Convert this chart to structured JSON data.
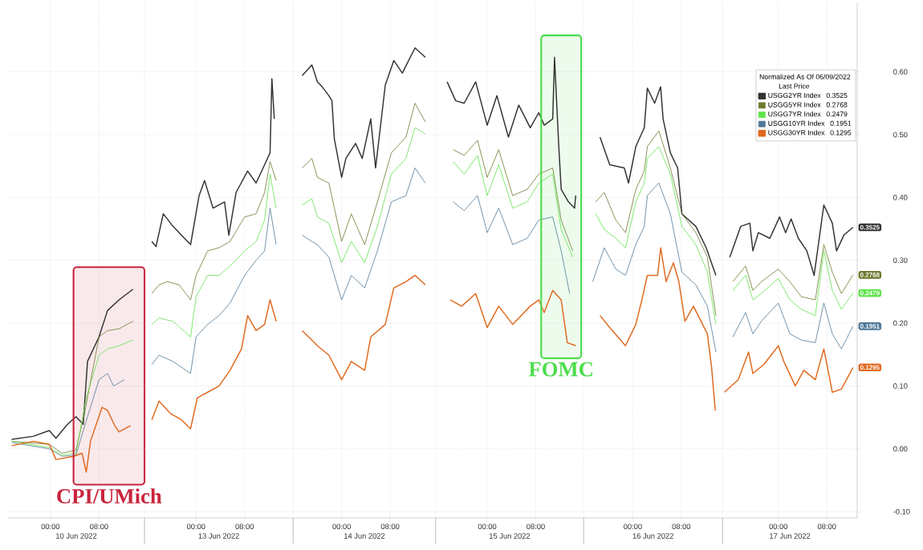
{
  "chart_data": [
    {
      "type": "line",
      "xlabel": "10 Jun 2022",
      "xlim": [
        "2022-06-09T17:00",
        "2022-06-10T15:30"
      ],
      "ylim": [
        -0.11,
        0.71
      ],
      "xticks": [
        {
          "value": "2022-06-10T00:00",
          "label": "00:00"
        },
        {
          "value": "2022-06-10T08:00",
          "label": "08:00"
        }
      ],
      "yticks": [
        -0.1,
        0.0,
        0.1,
        0.2,
        0.3,
        0.4,
        0.5,
        0.6
      ],
      "grid": true,
      "tick_labels": "x",
      "bands": [
        {
          "axis": "x",
          "from": "2022-06-10T03:48",
          "to": "2022-06-10T15:30",
          "label": "CPI/UMich",
          "color": "#c8243c"
        }
      ],
      "series": [
        {
          "color": "#333333",
          "x": [
            "2022-06-09T17:36",
            "2022-06-09T21:12",
            "2022-06-09T23:48",
            "2022-06-10T00:54",
            "2022-06-10T02:48",
            "2022-06-10T04:12",
            "2022-06-10T05:24",
            "2022-06-10T06:06",
            "2022-06-10T08:00",
            "2022-06-10T09:24",
            "2022-06-10T11:18",
            "2022-06-10T13:36"
          ],
          "values": [
            0.015,
            0.02,
            0.029,
            0.017,
            0.039,
            0.051,
            0.039,
            0.139,
            0.178,
            0.22,
            0.237,
            0.254
          ]
        },
        {
          "color": "#6b7a2e",
          "x": [
            "2022-06-09T17:36",
            "2022-06-09T23:48",
            "2022-06-10T01:54",
            "2022-06-10T04:12",
            "2022-06-10T05:36",
            "2022-06-10T08:00",
            "2022-06-10T09:24",
            "2022-06-10T11:18",
            "2022-06-10T13:36"
          ],
          "values": [
            0.012,
            0.007,
            -0.007,
            -0.002,
            0.056,
            0.178,
            0.188,
            0.191,
            0.203
          ]
        },
        {
          "color": "#5ee34a",
          "x": [
            "2022-06-09T17:36",
            "2022-06-09T23:48",
            "2022-06-10T01:54",
            "2022-06-10T04:12",
            "2022-06-10T05:54",
            "2022-06-10T08:00",
            "2022-06-10T09:24",
            "2022-06-10T11:18",
            "2022-06-10T13:36"
          ],
          "values": [
            0.012,
            0.002,
            -0.01,
            -0.007,
            0.081,
            0.149,
            0.159,
            0.164,
            0.173
          ]
        },
        {
          "color": "#4f7898",
          "x": [
            "2022-06-09T17:36",
            "2022-06-09T23:48",
            "2022-06-10T01:54",
            "2022-06-10T04:12",
            "2022-06-10T06:06",
            "2022-06-10T08:00",
            "2022-06-10T09:24",
            "2022-06-10T10:24",
            "2022-06-10T12:12"
          ],
          "values": [
            0.01,
            0.0,
            -0.012,
            -0.01,
            0.051,
            0.11,
            0.12,
            0.1,
            0.11
          ]
        },
        {
          "color": "#e0691f",
          "x": [
            "2022-06-09T17:36",
            "2022-06-09T21:12",
            "2022-06-09T23:48",
            "2022-06-10T00:54",
            "2022-06-10T03:48",
            "2022-06-10T05:12",
            "2022-06-10T05:54",
            "2022-06-10T06:36",
            "2022-06-10T08:30",
            "2022-06-10T09:24",
            "2022-06-10T10:36",
            "2022-06-10T11:18",
            "2022-06-10T13:12"
          ],
          "values": [
            0.005,
            0.012,
            0.007,
            -0.017,
            -0.012,
            -0.007,
            -0.037,
            0.012,
            0.066,
            0.061,
            0.037,
            0.027,
            0.037
          ]
        }
      ]
    },
    {
      "type": "line",
      "xlabel": "13 Jun 2022",
      "xlim": [
        "2022-06-12T15:30",
        "2022-06-13T16:00"
      ],
      "ylim": [
        -0.11,
        0.71
      ],
      "xticks": [
        {
          "value": "2022-06-13T00:00",
          "label": "00:00"
        },
        {
          "value": "2022-06-13T08:00",
          "label": "08:00"
        }
      ],
      "yticks": [
        -0.1,
        0.0,
        0.1,
        0.2,
        0.3,
        0.4,
        0.5,
        0.6
      ],
      "grid": true,
      "tick_labels": "x",
      "series": [
        {
          "color": "#333333",
          "x": [
            "2022-06-12T16:42",
            "2022-06-12T17:24",
            "2022-06-12T18:36",
            "2022-06-12T20:12",
            "2022-06-12T22:06",
            "2022-06-12T23:06",
            "2022-06-13T00:30",
            "2022-06-13T01:24",
            "2022-06-13T02:48",
            "2022-06-13T04:42",
            "2022-06-13T05:24",
            "2022-06-13T06:36",
            "2022-06-13T08:30",
            "2022-06-13T09:54",
            "2022-06-13T11:18",
            "2022-06-13T12:12",
            "2022-06-13T12:30",
            "2022-06-13T12:54"
          ],
          "values": [
            0.33,
            0.322,
            0.374,
            0.354,
            0.335,
            0.325,
            0.403,
            0.427,
            0.383,
            0.393,
            0.34,
            0.408,
            0.442,
            0.423,
            0.452,
            0.471,
            0.589,
            0.525
          ]
        },
        {
          "color": "#6b7a2e",
          "x": [
            "2022-06-12T16:42",
            "2022-06-12T17:54",
            "2022-06-12T19:18",
            "2022-06-12T21:12",
            "2022-06-12T23:06",
            "2022-06-13T00:00",
            "2022-06-13T01:54",
            "2022-06-13T03:48",
            "2022-06-13T05:36",
            "2022-06-13T08:00",
            "2022-06-13T09:54",
            "2022-06-13T11:18",
            "2022-06-13T12:12",
            "2022-06-13T13:12"
          ],
          "values": [
            0.247,
            0.261,
            0.266,
            0.261,
            0.237,
            0.276,
            0.315,
            0.32,
            0.33,
            0.369,
            0.374,
            0.408,
            0.457,
            0.427
          ]
        },
        {
          "color": "#5ee34a",
          "x": [
            "2022-06-12T16:42",
            "2022-06-12T17:54",
            "2022-06-12T20:12",
            "2022-06-12T23:06",
            "2022-06-13T00:00",
            "2022-06-13T01:54",
            "2022-06-13T03:48",
            "2022-06-13T05:36",
            "2022-06-13T08:00",
            "2022-06-13T09:54",
            "2022-06-13T11:18",
            "2022-06-13T12:12",
            "2022-06-13T13:12"
          ],
          "values": [
            0.198,
            0.208,
            0.203,
            0.178,
            0.242,
            0.276,
            0.276,
            0.291,
            0.315,
            0.33,
            0.364,
            0.437,
            0.383
          ]
        },
        {
          "color": "#4f7898",
          "x": [
            "2022-06-12T16:42",
            "2022-06-12T17:54",
            "2022-06-12T20:12",
            "2022-06-12T23:06",
            "2022-06-13T00:00",
            "2022-06-13T01:54",
            "2022-06-13T03:48",
            "2022-06-13T05:36",
            "2022-06-13T08:00",
            "2022-06-13T09:54",
            "2022-06-13T11:18",
            "2022-06-13T12:12",
            "2022-06-13T13:12"
          ],
          "values": [
            0.134,
            0.149,
            0.139,
            0.12,
            0.178,
            0.198,
            0.212,
            0.232,
            0.276,
            0.3,
            0.315,
            0.383,
            0.325
          ]
        },
        {
          "color": "#e0691f",
          "x": [
            "2022-06-12T16:42",
            "2022-06-12T17:54",
            "2022-06-12T19:48",
            "2022-06-12T21:36",
            "2022-06-12T23:06",
            "2022-06-13T00:12",
            "2022-06-13T01:54",
            "2022-06-13T03:48",
            "2022-06-13T05:36",
            "2022-06-13T07:30",
            "2022-06-13T08:30",
            "2022-06-13T09:54",
            "2022-06-13T11:18",
            "2022-06-13T12:12",
            "2022-06-13T13:12"
          ],
          "values": [
            0.046,
            0.076,
            0.056,
            0.046,
            0.032,
            0.081,
            0.09,
            0.1,
            0.125,
            0.159,
            0.212,
            0.188,
            0.198,
            0.237,
            0.203
          ]
        }
      ]
    },
    {
      "type": "line",
      "xlabel": "14 Jun 2022",
      "xlim": [
        "2022-06-13T16:00",
        "2022-06-14T15:30"
      ],
      "ylim": [
        -0.11,
        0.71
      ],
      "xticks": [
        {
          "value": "2022-06-14T00:00",
          "label": "00:00"
        },
        {
          "value": "2022-06-14T08:00",
          "label": "08:00"
        }
      ],
      "yticks": [
        -0.1,
        0.0,
        0.1,
        0.2,
        0.3,
        0.4,
        0.5,
        0.6
      ],
      "grid": true,
      "tick_labels": "x",
      "series": [
        {
          "color": "#333333",
          "x": [
            "2022-06-13T17:30",
            "2022-06-13T19:06",
            "2022-06-13T20:00",
            "2022-06-13T20:48",
            "2022-06-13T21:54",
            "2022-06-13T22:24",
            "2022-06-13T22:48",
            "2022-06-14T00:00",
            "2022-06-14T00:42",
            "2022-06-14T02:18",
            "2022-06-14T03:24",
            "2022-06-14T04:48",
            "2022-06-14T05:36",
            "2022-06-14T07:12",
            "2022-06-14T08:36",
            "2022-06-14T10:00",
            "2022-06-14T12:06",
            "2022-06-14T13:48"
          ],
          "values": [
            0.594,
            0.611,
            0.584,
            0.576,
            0.562,
            0.554,
            0.493,
            0.432,
            0.462,
            0.486,
            0.462,
            0.525,
            0.447,
            0.579,
            0.618,
            0.598,
            0.638,
            0.623
          ]
        },
        {
          "color": "#6b7a2e",
          "x": [
            "2022-06-13T17:30",
            "2022-06-13T19:06",
            "2022-06-13T20:00",
            "2022-06-13T21:54",
            "2022-06-14T00:00",
            "2022-06-14T01:36",
            "2022-06-14T03:48",
            "2022-06-14T05:54",
            "2022-06-14T08:12",
            "2022-06-14T10:36",
            "2022-06-14T12:06",
            "2022-06-14T13:48"
          ],
          "values": [
            0.447,
            0.462,
            0.432,
            0.423,
            0.33,
            0.374,
            0.325,
            0.393,
            0.471,
            0.496,
            0.55,
            0.52
          ]
        },
        {
          "color": "#5ee34a",
          "x": [
            "2022-06-13T17:30",
            "2022-06-13T19:06",
            "2022-06-13T20:00",
            "2022-06-13T21:54",
            "2022-06-14T00:00",
            "2022-06-14T01:36",
            "2022-06-14T03:48",
            "2022-06-14T05:54",
            "2022-06-14T08:12",
            "2022-06-14T10:36",
            "2022-06-14T12:06",
            "2022-06-14T13:48"
          ],
          "values": [
            0.388,
            0.398,
            0.369,
            0.359,
            0.296,
            0.33,
            0.296,
            0.354,
            0.437,
            0.462,
            0.511,
            0.501
          ]
        },
        {
          "color": "#4f7898",
          "x": [
            "2022-06-13T17:30",
            "2022-06-13T19:06",
            "2022-06-13T20:00",
            "2022-06-13T21:54",
            "2022-06-14T00:00",
            "2022-06-14T01:36",
            "2022-06-14T03:48",
            "2022-06-14T05:54",
            "2022-06-14T08:12",
            "2022-06-14T10:36",
            "2022-06-14T12:06",
            "2022-06-14T13:48"
          ],
          "values": [
            0.34,
            0.33,
            0.325,
            0.305,
            0.237,
            0.276,
            0.256,
            0.315,
            0.393,
            0.403,
            0.447,
            0.423
          ]
        },
        {
          "color": "#e0691f",
          "x": [
            "2022-06-13T17:30",
            "2022-06-13T19:06",
            "2022-06-13T20:00",
            "2022-06-13T21:54",
            "2022-06-14T00:00",
            "2022-06-14T01:36",
            "2022-06-14T03:48",
            "2022-06-14T04:48",
            "2022-06-14T07:12",
            "2022-06-14T08:36",
            "2022-06-14T10:36",
            "2022-06-14T12:06",
            "2022-06-14T13:48"
          ],
          "values": [
            0.188,
            0.173,
            0.164,
            0.149,
            0.11,
            0.139,
            0.125,
            0.178,
            0.198,
            0.256,
            0.266,
            0.276,
            0.261
          ]
        }
      ]
    },
    {
      "type": "line",
      "xlabel": "15 Jun 2022",
      "xlim": [
        "2022-06-14T15:30",
        "2022-06-15T15:54"
      ],
      "ylim": [
        -0.11,
        0.71
      ],
      "xticks": [
        {
          "value": "2022-06-15T00:00",
          "label": "00:00"
        },
        {
          "value": "2022-06-15T08:00",
          "label": "08:00"
        }
      ],
      "yticks": [
        -0.1,
        0.0,
        0.1,
        0.2,
        0.3,
        0.4,
        0.5,
        0.6
      ],
      "grid": true,
      "tick_labels": "x",
      "bands": [
        {
          "axis": "x",
          "from": "2022-06-15T08:54",
          "to": "2022-06-15T15:30",
          "label": "FOMC",
          "color": "#4ddc4d"
        }
      ],
      "series": [
        {
          "color": "#333333",
          "x": [
            "2022-06-14T17:24",
            "2022-06-14T18:48",
            "2022-06-14T20:12",
            "2022-06-14T22:06",
            "2022-06-15T00:00",
            "2022-06-15T01:36",
            "2022-06-15T03:30",
            "2022-06-15T05:12",
            "2022-06-15T07:06",
            "2022-06-15T08:30",
            "2022-06-15T09:24",
            "2022-06-15T10:48",
            "2022-06-15T11:06",
            "2022-06-15T11:48",
            "2022-06-15T12:12",
            "2022-06-15T13:24",
            "2022-06-15T14:24",
            "2022-06-15T14:36"
          ],
          "values": [
            0.584,
            0.554,
            0.55,
            0.584,
            0.515,
            0.562,
            0.496,
            0.547,
            0.511,
            0.535,
            0.515,
            0.525,
            0.623,
            0.481,
            0.413,
            0.393,
            0.383,
            0.403
          ]
        },
        {
          "color": "#6b7a2e",
          "x": [
            "2022-06-14T18:24",
            "2022-06-14T20:12",
            "2022-06-14T22:24",
            "2022-06-15T00:00",
            "2022-06-15T01:54",
            "2022-06-15T04:12",
            "2022-06-15T06:36",
            "2022-06-15T08:30",
            "2022-06-15T10:48",
            "2022-06-15T12:12",
            "2022-06-15T14:06"
          ],
          "values": [
            0.476,
            0.467,
            0.491,
            0.432,
            0.476,
            0.403,
            0.413,
            0.437,
            0.447,
            0.364,
            0.315
          ]
        },
        {
          "color": "#5ee34a",
          "x": [
            "2022-06-14T18:24",
            "2022-06-14T20:12",
            "2022-06-14T22:24",
            "2022-06-15T00:00",
            "2022-06-15T01:54",
            "2022-06-15T04:12",
            "2022-06-15T06:36",
            "2022-06-15T08:30",
            "2022-06-15T10:48",
            "2022-06-15T12:12",
            "2022-06-15T14:06"
          ],
          "values": [
            0.457,
            0.437,
            0.467,
            0.403,
            0.452,
            0.383,
            0.393,
            0.423,
            0.437,
            0.349,
            0.305
          ]
        },
        {
          "color": "#4f7898",
          "x": [
            "2022-06-14T18:24",
            "2022-06-14T20:12",
            "2022-06-14T22:24",
            "2022-06-15T00:00",
            "2022-06-15T01:54",
            "2022-06-15T04:12",
            "2022-06-15T06:36",
            "2022-06-15T08:30",
            "2022-06-15T10:48",
            "2022-06-15T12:12",
            "2022-06-15T13:36"
          ],
          "values": [
            0.393,
            0.379,
            0.403,
            0.344,
            0.383,
            0.325,
            0.335,
            0.364,
            0.369,
            0.315,
            0.247
          ]
        },
        {
          "color": "#e0691f",
          "x": [
            "2022-06-14T17:54",
            "2022-06-14T19:48",
            "2022-06-14T22:06",
            "2022-06-15T00:00",
            "2022-06-15T01:54",
            "2022-06-15T04:12",
            "2022-06-15T05:12",
            "2022-06-15T07:06",
            "2022-06-15T08:30",
            "2022-06-15T09:24",
            "2022-06-15T10:48",
            "2022-06-15T12:12",
            "2022-06-15T13:12",
            "2022-06-15T14:36"
          ],
          "values": [
            0.237,
            0.227,
            0.247,
            0.193,
            0.227,
            0.198,
            0.208,
            0.227,
            0.237,
            0.217,
            0.252,
            0.237,
            0.169,
            0.164
          ]
        }
      ]
    },
    {
      "type": "line",
      "xlabel": "16 Jun 2022",
      "xlim": [
        "2022-06-15T15:54",
        "2022-06-16T14:48"
      ],
      "ylim": [
        -0.11,
        0.71
      ],
      "xticks": [
        {
          "value": "2022-06-16T00:00",
          "label": "00:00"
        },
        {
          "value": "2022-06-16T08:00",
          "label": "08:00"
        }
      ],
      "yticks": [
        -0.1,
        0.0,
        0.1,
        0.2,
        0.3,
        0.4,
        0.5,
        0.6
      ],
      "grid": true,
      "tick_labels": "x",
      "series": [
        {
          "color": "#333333",
          "x": [
            "2022-06-15T18:36",
            "2022-06-15T20:12",
            "2022-06-15T22:36",
            "2022-06-15T23:18",
            "2022-06-16T00:30",
            "2022-06-16T01:54",
            "2022-06-16T02:24",
            "2022-06-16T03:36",
            "2022-06-16T04:36",
            "2022-06-16T05:00",
            "2022-06-16T06:12",
            "2022-06-16T07:24",
            "2022-06-16T08:06",
            "2022-06-16T10:24",
            "2022-06-16T12:06",
            "2022-06-16T13:42"
          ],
          "values": [
            0.496,
            0.452,
            0.447,
            0.423,
            0.481,
            0.511,
            0.574,
            0.55,
            0.576,
            0.525,
            0.471,
            0.447,
            0.374,
            0.354,
            0.32,
            0.276
          ]
        },
        {
          "color": "#6b7a2e",
          "x": [
            "2022-06-15T17:54",
            "2022-06-15T19:18",
            "2022-06-15T21:12",
            "2022-06-15T22:48",
            "2022-06-16T00:30",
            "2022-06-16T01:54",
            "2022-06-16T02:24",
            "2022-06-16T04:18",
            "2022-06-16T06:12",
            "2022-06-16T08:06",
            "2022-06-16T10:24",
            "2022-06-16T12:18",
            "2022-06-16T13:42"
          ],
          "values": [
            0.393,
            0.408,
            0.364,
            0.344,
            0.413,
            0.442,
            0.481,
            0.506,
            0.447,
            0.374,
            0.344,
            0.305,
            0.212
          ]
        },
        {
          "color": "#5ee34a",
          "x": [
            "2022-06-15T17:54",
            "2022-06-15T19:18",
            "2022-06-15T21:12",
            "2022-06-15T22:48",
            "2022-06-16T00:30",
            "2022-06-16T01:54",
            "2022-06-16T02:24",
            "2022-06-16T04:18",
            "2022-06-16T06:12",
            "2022-06-16T08:06",
            "2022-06-16T10:24",
            "2022-06-16T12:18",
            "2022-06-16T13:42"
          ],
          "values": [
            0.374,
            0.349,
            0.335,
            0.32,
            0.393,
            0.423,
            0.462,
            0.481,
            0.437,
            0.354,
            0.325,
            0.281,
            0.198
          ]
        },
        {
          "color": "#4f7898",
          "x": [
            "2022-06-15T17:24",
            "2022-06-15T19:18",
            "2022-06-15T21:12",
            "2022-06-15T22:48",
            "2022-06-16T00:30",
            "2022-06-16T01:54",
            "2022-06-16T02:24",
            "2022-06-16T04:18",
            "2022-06-16T06:12",
            "2022-06-16T08:06",
            "2022-06-16T10:24",
            "2022-06-16T12:18",
            "2022-06-16T13:42"
          ],
          "values": [
            0.266,
            0.32,
            0.286,
            0.276,
            0.325,
            0.354,
            0.403,
            0.423,
            0.374,
            0.281,
            0.261,
            0.227,
            0.154
          ]
        },
        {
          "color": "#e0691f",
          "x": [
            "2022-06-15T18:36",
            "2022-06-15T20:12",
            "2022-06-15T22:48",
            "2022-06-16T00:30",
            "2022-06-16T01:30",
            "2022-06-16T02:24",
            "2022-06-16T04:06",
            "2022-06-16T04:36",
            "2022-06-16T05:30",
            "2022-06-16T06:42",
            "2022-06-16T07:36",
            "2022-06-16T08:36",
            "2022-06-16T10:00",
            "2022-06-16T12:18",
            "2022-06-16T13:00",
            "2022-06-16T13:36"
          ],
          "values": [
            0.212,
            0.193,
            0.164,
            0.198,
            0.237,
            0.276,
            0.276,
            0.32,
            0.266,
            0.296,
            0.266,
            0.203,
            0.227,
            0.183,
            0.129,
            0.061
          ]
        }
      ]
    },
    {
      "type": "line",
      "xlabel": "17 Jun 2022",
      "xlim": [
        "2022-06-16T14:48",
        "2022-06-17T13:00"
      ],
      "ylim": [
        -0.11,
        0.71
      ],
      "xticks": [
        {
          "value": "2022-06-17T00:00",
          "label": "00:00"
        },
        {
          "value": "2022-06-17T08:00",
          "label": "08:00"
        }
      ],
      "yticks": [
        {
          "value": -0.1,
          "label": "-0.10"
        },
        {
          "value": 0.0,
          "label": "0.00"
        },
        {
          "value": 0.1,
          "label": "0.10"
        },
        {
          "value": 0.2,
          "label": "0.20"
        },
        {
          "value": 0.3,
          "label": "0.30"
        },
        {
          "value": 0.4,
          "label": "0.40"
        },
        {
          "value": 0.5,
          "label": "0.50"
        },
        {
          "value": 0.6,
          "label": "0.60"
        }
      ],
      "grid": true,
      "legend": "top right",
      "legend_title": "Normalized As Of 06/09/2022",
      "annotations": [
        "Last Price"
      ],
      "series": [
        {
          "name": "USGG2YR Index",
          "color": "#333333",
          "x": [
            "2022-06-16T16:00",
            "2022-06-16T17:48",
            "2022-06-16T19:18",
            "2022-06-16T19:48",
            "2022-06-16T20:42",
            "2022-06-16T22:36",
            "2022-06-17T00:12",
            "2022-06-17T01:12",
            "2022-06-17T02:06",
            "2022-06-17T03:18",
            "2022-06-17T04:42",
            "2022-06-17T05:54",
            "2022-06-17T07:30",
            "2022-06-17T08:54",
            "2022-06-17T09:36",
            "2022-06-17T10:48",
            "2022-06-17T12:18"
          ],
          "values": [
            0.305,
            0.354,
            0.359,
            0.315,
            0.344,
            0.335,
            0.369,
            0.344,
            0.366,
            0.335,
            0.315,
            0.276,
            0.388,
            0.359,
            0.315,
            0.34,
            0.3525
          ],
          "value_labels": [
            null,
            null,
            null,
            null,
            null,
            null,
            null,
            null,
            null,
            null,
            null,
            null,
            null,
            null,
            null,
            null,
            "0.3525"
          ]
        },
        {
          "name": "USGG5YR Index",
          "color": "#6b7a2e",
          "x": [
            "2022-06-16T16:30",
            "2022-06-16T18:36",
            "2022-06-16T19:48",
            "2022-06-16T21:12",
            "2022-06-17T00:00",
            "2022-06-17T01:54",
            "2022-06-17T03:48",
            "2022-06-17T06:06",
            "2022-06-17T07:30",
            "2022-06-17T08:54",
            "2022-06-17T10:24",
            "2022-06-17T12:18"
          ],
          "values": [
            0.266,
            0.291,
            0.252,
            0.266,
            0.286,
            0.266,
            0.242,
            0.237,
            0.325,
            0.281,
            0.247,
            0.2768
          ],
          "value_labels": [
            null,
            null,
            null,
            null,
            null,
            null,
            null,
            null,
            null,
            null,
            null,
            "0.2768"
          ]
        },
        {
          "name": "USGG7YR Index",
          "color": "#5ee34a",
          "x": [
            "2022-06-16T16:30",
            "2022-06-16T18:36",
            "2022-06-16T19:48",
            "2022-06-16T21:12",
            "2022-06-17T00:00",
            "2022-06-17T01:54",
            "2022-06-17T03:48",
            "2022-06-17T06:06",
            "2022-06-17T07:30",
            "2022-06-17T08:54",
            "2022-06-17T10:24",
            "2022-06-17T12:18"
          ],
          "values": [
            0.252,
            0.276,
            0.237,
            0.247,
            0.271,
            0.237,
            0.222,
            0.212,
            0.315,
            0.252,
            0.222,
            0.2479
          ],
          "value_labels": [
            null,
            null,
            null,
            null,
            null,
            null,
            null,
            null,
            null,
            null,
            null,
            "0.2479"
          ]
        },
        {
          "name": "USGG10YR Index",
          "color": "#4f7898",
          "x": [
            "2022-06-16T16:30",
            "2022-06-16T18:36",
            "2022-06-16T19:48",
            "2022-06-16T21:12",
            "2022-06-17T00:00",
            "2022-06-17T01:54",
            "2022-06-17T03:48",
            "2022-06-17T06:06",
            "2022-06-17T07:30",
            "2022-06-17T08:54",
            "2022-06-17T10:24",
            "2022-06-17T12:18"
          ],
          "values": [
            0.178,
            0.217,
            0.183,
            0.203,
            0.232,
            0.183,
            0.173,
            0.169,
            0.232,
            0.183,
            0.159,
            0.1951
          ],
          "value_labels": [
            null,
            null,
            null,
            null,
            null,
            null,
            null,
            null,
            null,
            null,
            null,
            "0.1951"
          ]
        },
        {
          "name": "USGG30YR Index",
          "color": "#e0691f",
          "x": [
            "2022-06-16T15:06",
            "2022-06-16T17:24",
            "2022-06-16T19:06",
            "2022-06-16T19:48",
            "2022-06-16T21:36",
            "2022-06-17T00:00",
            "2022-06-17T00:54",
            "2022-06-17T02:48",
            "2022-06-17T04:12",
            "2022-06-17T06:06",
            "2022-06-17T07:30",
            "2022-06-17T08:54",
            "2022-06-17T10:24",
            "2022-06-17T12:18"
          ],
          "values": [
            0.09,
            0.11,
            0.154,
            0.12,
            0.134,
            0.164,
            0.139,
            0.1,
            0.125,
            0.11,
            0.159,
            0.09,
            0.095,
            0.1295
          ],
          "value_labels": [
            null,
            null,
            null,
            null,
            null,
            null,
            null,
            null,
            null,
            null,
            null,
            null,
            null,
            "0.1295"
          ]
        }
      ]
    }
  ]
}
